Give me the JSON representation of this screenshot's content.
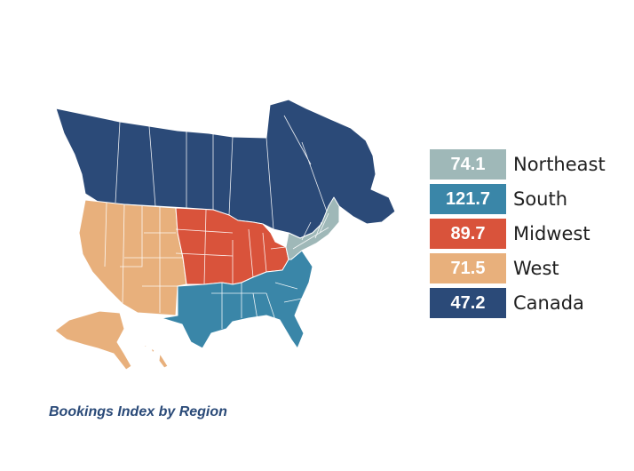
{
  "caption": "Bookings Index by Region",
  "regions": [
    {
      "id": "northeast",
      "label": "Northeast",
      "value": "74.1",
      "color": "#9fb8b8"
    },
    {
      "id": "south",
      "label": "South",
      "value": "121.7",
      "color": "#3a86a8"
    },
    {
      "id": "midwest",
      "label": "Midwest",
      "value": "89.7",
      "color": "#d9533b"
    },
    {
      "id": "west",
      "label": "West",
      "value": "71.5",
      "color": "#e8b07c"
    },
    {
      "id": "canada",
      "label": "Canada",
      "value": "47.2",
      "color": "#2b4a78"
    }
  ]
}
